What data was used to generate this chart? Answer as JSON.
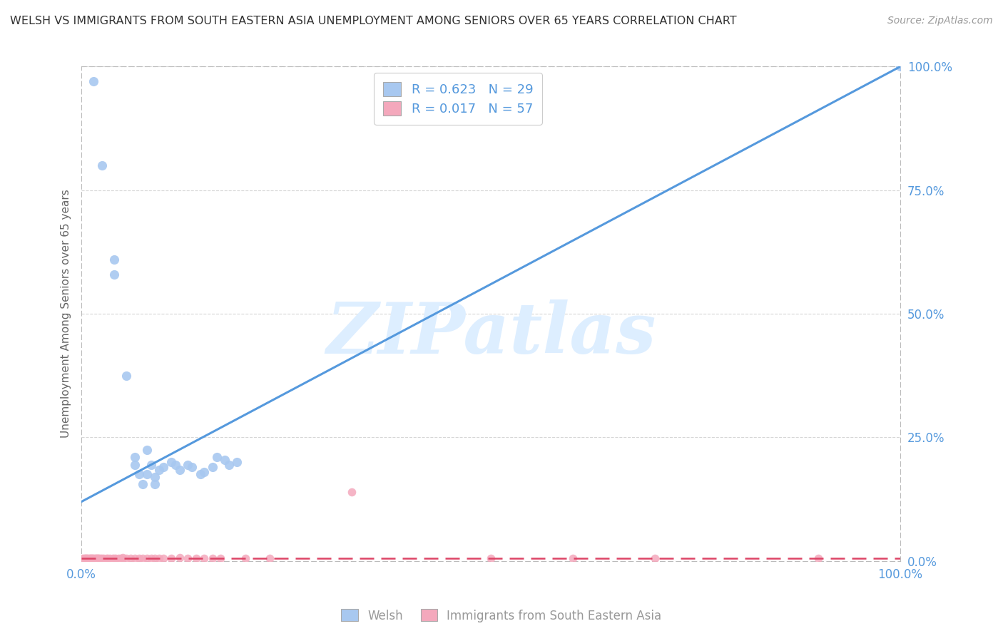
{
  "title": "WELSH VS IMMIGRANTS FROM SOUTH EASTERN ASIA UNEMPLOYMENT AMONG SENIORS OVER 65 YEARS CORRELATION CHART",
  "source": "Source: ZipAtlas.com",
  "ylabel": "Unemployment Among Seniors over 65 years",
  "y_tick_labels": [
    "0.0%",
    "25.0%",
    "50.0%",
    "75.0%",
    "100.0%"
  ],
  "y_tick_values": [
    0.0,
    0.25,
    0.5,
    0.75,
    1.0
  ],
  "legend1_label": "R = 0.623   N = 29",
  "legend2_label": "R = 0.017   N = 57",
  "legend1_group": "Welsh",
  "legend2_group": "Immigrants from South Eastern Asia",
  "welsh_color": "#a8c8f0",
  "immigrant_color": "#f4a8bc",
  "welsh_line_color": "#5599dd",
  "immigrant_line_color": "#dd4466",
  "watermark_text": "ZIPatlas",
  "watermark_color": "#ddeeff",
  "welsh_scatter": [
    [
      0.015,
      0.97
    ],
    [
      0.025,
      0.8
    ],
    [
      0.04,
      0.61
    ],
    [
      0.04,
      0.58
    ],
    [
      0.055,
      0.375
    ],
    [
      0.065,
      0.21
    ],
    [
      0.065,
      0.195
    ],
    [
      0.07,
      0.175
    ],
    [
      0.075,
      0.155
    ],
    [
      0.08,
      0.225
    ],
    [
      0.08,
      0.175
    ],
    [
      0.085,
      0.195
    ],
    [
      0.09,
      0.17
    ],
    [
      0.09,
      0.155
    ],
    [
      0.095,
      0.185
    ],
    [
      0.1,
      0.19
    ],
    [
      0.11,
      0.2
    ],
    [
      0.115,
      0.195
    ],
    [
      0.12,
      0.185
    ],
    [
      0.13,
      0.195
    ],
    [
      0.135,
      0.19
    ],
    [
      0.145,
      0.175
    ],
    [
      0.15,
      0.18
    ],
    [
      0.16,
      0.19
    ],
    [
      0.165,
      0.21
    ],
    [
      0.175,
      0.205
    ],
    [
      0.18,
      0.195
    ],
    [
      0.19,
      0.2
    ],
    [
      1.0,
      1.0
    ]
  ],
  "immigrant_scatter": [
    [
      0.002,
      0.005
    ],
    [
      0.003,
      0.005
    ],
    [
      0.004,
      0.005
    ],
    [
      0.005,
      0.005
    ],
    [
      0.006,
      0.005
    ],
    [
      0.007,
      0.006
    ],
    [
      0.008,
      0.005
    ],
    [
      0.009,
      0.005
    ],
    [
      0.01,
      0.006
    ],
    [
      0.011,
      0.005
    ],
    [
      0.012,
      0.005
    ],
    [
      0.013,
      0.006
    ],
    [
      0.014,
      0.005
    ],
    [
      0.015,
      0.005
    ],
    [
      0.016,
      0.005
    ],
    [
      0.017,
      0.006
    ],
    [
      0.018,
      0.005
    ],
    [
      0.019,
      0.005
    ],
    [
      0.02,
      0.005
    ],
    [
      0.021,
      0.006
    ],
    [
      0.022,
      0.005
    ],
    [
      0.023,
      0.005
    ],
    [
      0.025,
      0.005
    ],
    [
      0.027,
      0.006
    ],
    [
      0.03,
      0.005
    ],
    [
      0.032,
      0.005
    ],
    [
      0.035,
      0.006
    ],
    [
      0.038,
      0.005
    ],
    [
      0.04,
      0.005
    ],
    [
      0.042,
      0.006
    ],
    [
      0.045,
      0.005
    ],
    [
      0.048,
      0.005
    ],
    [
      0.05,
      0.007
    ],
    [
      0.055,
      0.005
    ],
    [
      0.06,
      0.005
    ],
    [
      0.065,
      0.006
    ],
    [
      0.07,
      0.005
    ],
    [
      0.075,
      0.005
    ],
    [
      0.08,
      0.005
    ],
    [
      0.085,
      0.006
    ],
    [
      0.09,
      0.005
    ],
    [
      0.095,
      0.005
    ],
    [
      0.1,
      0.005
    ],
    [
      0.11,
      0.005
    ],
    [
      0.12,
      0.007
    ],
    [
      0.13,
      0.005
    ],
    [
      0.14,
      0.005
    ],
    [
      0.15,
      0.005
    ],
    [
      0.16,
      0.005
    ],
    [
      0.17,
      0.006
    ],
    [
      0.2,
      0.005
    ],
    [
      0.23,
      0.005
    ],
    [
      0.33,
      0.14
    ],
    [
      0.5,
      0.005
    ],
    [
      0.6,
      0.005
    ],
    [
      0.7,
      0.005
    ],
    [
      0.9,
      0.005
    ]
  ],
  "welsh_line": [
    [
      0.0,
      0.12
    ],
    [
      1.0,
      1.0
    ]
  ],
  "immigrant_line": [
    [
      0.0,
      0.005
    ],
    [
      1.0,
      0.005
    ]
  ],
  "xlim": [
    0.0,
    1.0
  ],
  "ylim": [
    0.0,
    1.0
  ],
  "background_color": "#ffffff",
  "grid_color": "#cccccc",
  "tick_color": "#5599dd",
  "ylabel_color": "#666666",
  "title_color": "#333333",
  "source_color": "#999999",
  "legend_label_color": "#5599dd",
  "bottom_legend_color": "#999999"
}
